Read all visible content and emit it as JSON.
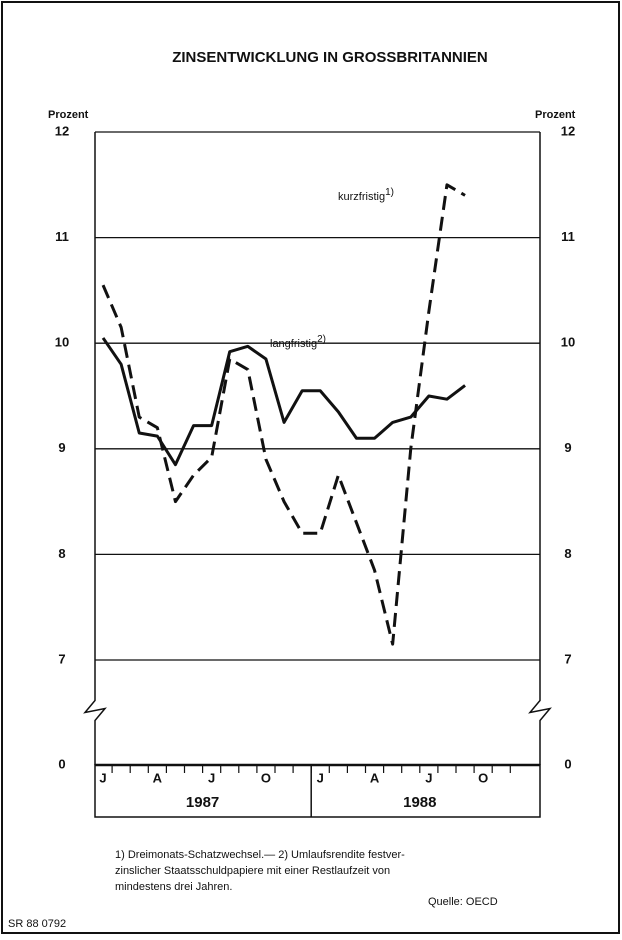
{
  "chart_data": {
    "type": "line",
    "title": "ZINSENTWICKLUNG IN GROSSBRITANNIEN",
    "y_label": "Prozent",
    "y2_label": "Prozent",
    "categories": [
      "J",
      null,
      null,
      "A",
      null,
      null,
      "J",
      null,
      null,
      "O",
      null,
      null,
      "J",
      null,
      null,
      "A",
      null,
      null,
      "J",
      null,
      null,
      "O",
      null,
      null
    ],
    "year_labels": [
      "1987",
      "1988"
    ],
    "series": [
      {
        "name": "kurzfristig",
        "note": "1)",
        "color": "#111111",
        "dash": true,
        "values": [
          10.55,
          10.15,
          9.3,
          9.2,
          8.5,
          8.75,
          8.92,
          9.85,
          9.75,
          8.9,
          8.5,
          8.2,
          8.2,
          8.75,
          8.3,
          7.85,
          7.15,
          9.0,
          10.3,
          11.5,
          11.4,
          null,
          null,
          null
        ]
      },
      {
        "name": "langfristig",
        "note": "2)",
        "color": "#111111",
        "dash": false,
        "values": [
          10.05,
          9.8,
          9.15,
          9.12,
          8.85,
          9.22,
          9.22,
          9.92,
          9.97,
          9.85,
          9.25,
          9.55,
          9.55,
          9.35,
          9.1,
          9.1,
          9.25,
          9.3,
          9.5,
          9.47,
          9.6,
          null,
          null,
          null
        ]
      }
    ],
    "ylim": [
      0,
      12
    ],
    "axis_break": [
      0,
      7
    ],
    "yticks": [
      0,
      7,
      8,
      9,
      10,
      11,
      12
    ],
    "grid": true,
    "footnotes": [
      "1) Dreimonats-Schatzwechsel.— 2) Umlaufsrendite festver-",
      "zinslicher Staatsschuldpapiere mit einer Restlaufzeit von",
      "mindestens drei Jahren."
    ],
    "source": "Quelle: OECD",
    "code": "SR 88 0792"
  }
}
